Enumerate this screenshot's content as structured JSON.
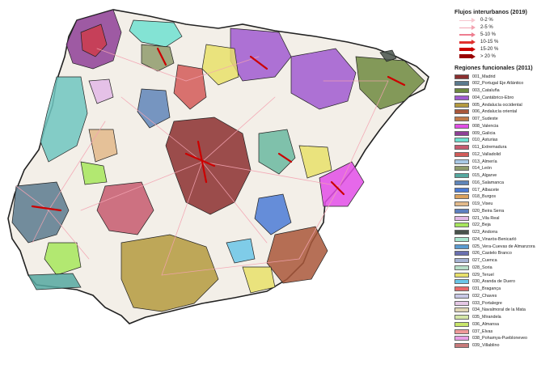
{
  "legend": {
    "flows_title": "Flujos interurbanos (2019)",
    "flows": [
      {
        "label": "0-2 %",
        "color": "#f7c6cf",
        "width": 1
      },
      {
        "label": "2-5 %",
        "color": "#f3a3b1",
        "width": 1.5
      },
      {
        "label": "5-10 %",
        "color": "#ee7d8f",
        "width": 2
      },
      {
        "label": "10-15 %",
        "color": "#e0302e",
        "width": 3
      },
      {
        "label": "15-20 %",
        "color": "#cc0000",
        "width": 4
      },
      {
        "label": "> 20 %",
        "color": "#990000",
        "width": 5
      }
    ],
    "regions_title": "Regiones funcionales (2011)",
    "regions": [
      {
        "label": "001_Madrid",
        "color": "#8b2f2f"
      },
      {
        "label": "002_Portugal Eje Atlántico",
        "color": "#5b7a8e"
      },
      {
        "label": "003_Cataluña",
        "color": "#6e8a3f"
      },
      {
        "label": "004_Cantábrico-Ebro",
        "color": "#a05ad0"
      },
      {
        "label": "005_Andalucía occidental",
        "color": "#b49a3e"
      },
      {
        "label": "006_Andalucía oriental",
        "color": "#a9573a"
      },
      {
        "label": "007_Sudeste",
        "color": "#c07a4a"
      },
      {
        "label": "008_Valencia",
        "color": "#e24ee6"
      },
      {
        "label": "009_Galicia",
        "color": "#8e3f96"
      },
      {
        "label": "010_Asturias",
        "color": "#6ee0d0"
      },
      {
        "label": "011_Extremadura",
        "color": "#c65b6f"
      },
      {
        "label": "012_Valladolid",
        "color": "#d25b58"
      },
      {
        "label": "013_Almería",
        "color": "#a8c8e6"
      },
      {
        "label": "014_León",
        "color": "#8f9b6c"
      },
      {
        "label": "015_Algarve",
        "color": "#55a8a0"
      },
      {
        "label": "016_Salamanca",
        "color": "#5f85b8"
      },
      {
        "label": "017_Albacete",
        "color": "#4b7bd6"
      },
      {
        "label": "018_Burgos",
        "color": "#dba25e"
      },
      {
        "label": "019_Viseu",
        "color": "#e2b98a"
      },
      {
        "label": "020_Beira Serra",
        "color": "#5c7fc0"
      },
      {
        "label": "021_Vila Real",
        "color": "#e2b9e6"
      },
      {
        "label": "022_Beja",
        "color": "#a6e65c"
      },
      {
        "label": "023_Andorra",
        "color": "#48524b"
      },
      {
        "label": "024_Vinaròs-Benicarló",
        "color": "#a8e6cf"
      },
      {
        "label": "025_Vera-Cuevas de Almanzora",
        "color": "#5a9bd0"
      },
      {
        "label": "026_Castelo Branco",
        "color": "#6a70b0"
      },
      {
        "label": "027_Cuenca",
        "color": "#a6b4d4"
      },
      {
        "label": "028_Soria",
        "color": "#b8e0c8"
      },
      {
        "label": "029_Teruel",
        "color": "#e8e06a"
      },
      {
        "label": "030_Aranda de Duero",
        "color": "#6ac6e8"
      },
      {
        "label": "031_Bragança",
        "color": "#e86a6a"
      },
      {
        "label": "032_Chaves",
        "color": "#c8c8e6"
      },
      {
        "label": "033_Portalegre",
        "color": "#e6c8e6"
      },
      {
        "label": "034_Navalmoral de la Mata",
        "color": "#e0d6b4"
      },
      {
        "label": "035_Mirandela",
        "color": "#d4e6a6"
      },
      {
        "label": "036_Almansa",
        "color": "#c8e66a"
      },
      {
        "label": "037_Elvas",
        "color": "#ee9a9a"
      },
      {
        "label": "038_Pohamya-Puebloneveo",
        "color": "#e8a0e6"
      },
      {
        "label": "039_Villablino",
        "color": "#c87a7a"
      }
    ]
  }
}
